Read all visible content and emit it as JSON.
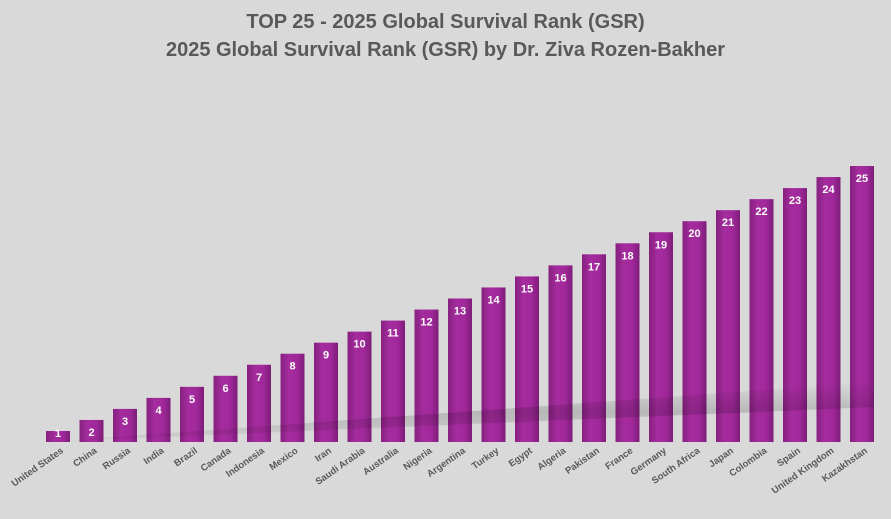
{
  "chart_data": {
    "type": "bar",
    "title": "TOP 25 - 2025 Global Survival Rank (GSR)",
    "subtitle": "2025 Global Survival Rank (GSR) by Dr. Ziva Rozen-Bakher",
    "xlabel": "",
    "ylabel": "",
    "categories": [
      "United States",
      "China",
      "Russia",
      "India",
      "Brazil",
      "Canada",
      "Indonesia",
      "Mexico",
      "Iran",
      "Saudi Arabia",
      "Australia",
      "Nigeria",
      "Argentina",
      "Turkey",
      "Egypt",
      "Algeria",
      "Pakistan",
      "France",
      "Germany",
      "South Africa",
      "Japan",
      "Colombia",
      "Spain",
      "United Kingdom",
      "Kazakhstan"
    ],
    "values": [
      1,
      2,
      3,
      4,
      5,
      6,
      7,
      8,
      9,
      10,
      11,
      12,
      13,
      14,
      15,
      16,
      17,
      18,
      19,
      20,
      21,
      22,
      23,
      24,
      25
    ],
    "data_labels": [
      "1",
      "2",
      "3",
      "4",
      "5",
      "6",
      "7",
      "8",
      "9",
      "10",
      "11",
      "12",
      "13",
      "14",
      "15",
      "16",
      "17",
      "18",
      "19",
      "20",
      "21",
      "22",
      "23",
      "24",
      "25"
    ],
    "ylim": [
      0,
      25
    ],
    "grid": false,
    "legend": "none",
    "colors": {
      "bar": "#a0289a",
      "background": "#d9d9d9",
      "text": "#595959"
    }
  }
}
